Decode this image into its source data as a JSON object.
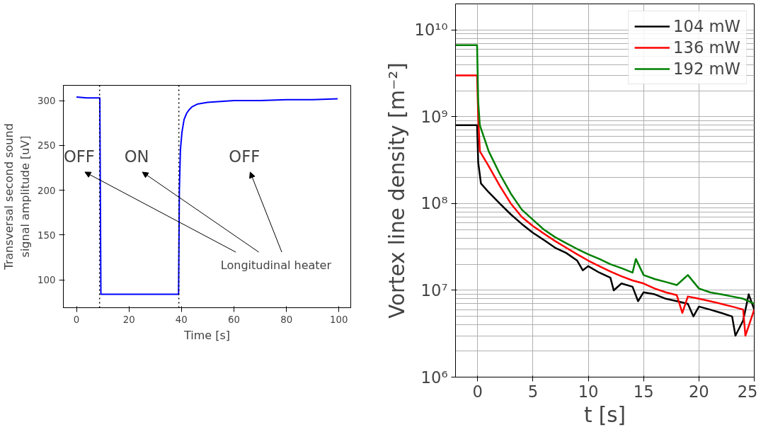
{
  "chart_data": [
    {
      "type": "line",
      "xlabel": "Time [s]",
      "ylabel": "Transversal second sound\nsignal amplitude [uV]",
      "series": [
        {
          "color": "#0000ff",
          "x": [
            0,
            4,
            8.9,
            9.3,
            15,
            25,
            35,
            38.9,
            39.2,
            39.6,
            40.2,
            41,
            42,
            43,
            44,
            46,
            48,
            50,
            55,
            60,
            70,
            80,
            90,
            99.5
          ],
          "values": [
            304,
            303,
            303,
            84,
            84,
            84,
            84,
            84,
            200,
            245,
            265,
            279,
            286,
            290,
            293,
            296,
            297,
            298,
            299,
            300,
            300,
            301,
            301,
            302
          ]
        }
      ],
      "xlim": [
        -5,
        104.5
      ],
      "ylim": [
        69,
        317
      ],
      "xticks": [
        0,
        20,
        40,
        60,
        80,
        100
      ],
      "yticks": [
        100,
        150,
        200,
        250,
        300
      ],
      "ref_lines": [
        {
          "axis": "x",
          "value": 8.8,
          "color": "#000000",
          "line_style": "dotted"
        },
        {
          "axis": "x",
          "value": 39,
          "color": "#000000",
          "line_style": "dotted"
        }
      ],
      "annotations": [
        "OFF",
        "ON",
        "OFF",
        "Longitudinal heater"
      ],
      "grid": false,
      "legend": false
    },
    {
      "type": "line",
      "xlabel": "t [s]",
      "ylabel": "Vortex line density [m⁻²]",
      "log": "y",
      "grid": true,
      "legend": "top right",
      "xlim": [
        -2,
        25
      ],
      "ylim": [
        1000000.0,
        20000000000.0
      ],
      "xticks": [
        0,
        5,
        10,
        15,
        20,
        25
      ],
      "yticks": [
        {
          "value": 1000000.0,
          "label": "10⁶"
        },
        {
          "value": 10000000.0,
          "label": "10⁷"
        },
        {
          "value": 100000000.0,
          "label": "10⁸"
        },
        {
          "value": 1000000000.0,
          "label": "10⁹"
        },
        {
          "value": 10000000000.0,
          "label": "10¹⁰"
        }
      ],
      "series": [
        {
          "name": "104 mW",
          "color": "#000000",
          "x": [
            -2,
            -0.05,
            0.05,
            0.3,
            1,
            2,
            3,
            4,
            5,
            6,
            7,
            8,
            9,
            9.5,
            10,
            11,
            12,
            12.3,
            13,
            14,
            14.5,
            15,
            16,
            17,
            18,
            19,
            19.5,
            20,
            21,
            22,
            23,
            23.3,
            24,
            24.5,
            25
          ],
          "values": [
            800000000.0,
            800000000.0,
            300000000.0,
            170000000.0,
            135000000.0,
            100000000.0,
            75000000.0,
            58000000.0,
            46000000.0,
            38000000.0,
            31000000.0,
            27000000.0,
            22000000.0,
            17000000.0,
            19000000.0,
            16000000.0,
            14000000.0,
            10000000.0,
            12000000.0,
            11000000.0,
            7500000.0,
            9500000.0,
            9000000.0,
            8000000.0,
            7500000.0,
            7000000.0,
            5000000.0,
            6500000.0,
            6000000.0,
            5500000.0,
            5000000.0,
            3000000.0,
            4500000.0,
            9000000.0,
            6000000.0
          ]
        },
        {
          "name": "136 mW",
          "color": "#ff0000",
          "x": [
            -2,
            -0.05,
            0.05,
            0.2,
            1,
            2,
            3,
            4,
            5,
            6,
            7,
            8,
            9,
            10,
            11,
            12,
            13,
            14,
            15,
            16,
            17,
            18,
            18.5,
            19,
            20,
            21,
            22,
            23,
            24,
            24.2,
            25
          ],
          "values": [
            3000000000.0,
            3000000000.0,
            1000000000.0,
            400000000.0,
            270000000.0,
            160000000.0,
            100000000.0,
            70000000.0,
            55000000.0,
            45000000.0,
            37000000.0,
            31000000.0,
            26000000.0,
            22000000.0,
            19000000.0,
            16500000.0,
            14500000.0,
            13000000.0,
            12000000.0,
            10500000.0,
            9500000.0,
            8800000.0,
            5500000.0,
            8500000.0,
            8000000.0,
            7500000.0,
            7000000.0,
            6500000.0,
            6000000.0,
            3000000.0,
            6000000.0
          ]
        },
        {
          "name": "192 mW",
          "color": "#008000",
          "x": [
            -2,
            -0.05,
            0.05,
            0.2,
            1,
            2,
            3,
            4,
            5,
            6,
            7,
            8,
            9,
            10,
            11,
            12,
            13,
            14,
            14.3,
            15,
            16,
            17,
            18,
            19,
            20,
            21,
            22,
            23,
            24,
            25
          ],
          "values": [
            6700000000.0,
            6700000000.0,
            1500000000.0,
            800000000.0,
            400000000.0,
            220000000.0,
            130000000.0,
            85000000.0,
            65000000.0,
            50000000.0,
            41000000.0,
            35000000.0,
            30000000.0,
            26000000.0,
            23000000.0,
            20000000.0,
            18000000.0,
            16000000.0,
            23000000.0,
            15000000.0,
            13500000.0,
            12500000.0,
            11500000.0,
            15000000.0,
            10500000.0,
            9500000.0,
            9000000.0,
            8500000.0,
            8000000.0,
            7000000.0
          ]
        }
      ]
    }
  ]
}
